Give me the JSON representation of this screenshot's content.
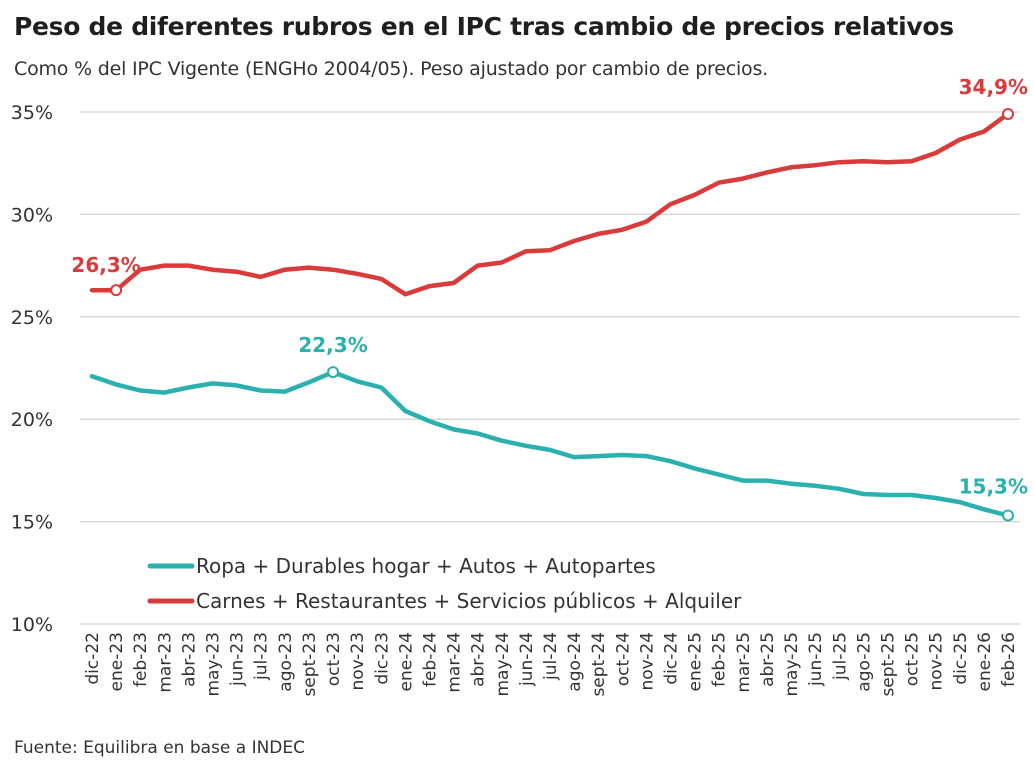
{
  "title": "Peso de diferentes rubros en el IPC tras cambio de precios relativos",
  "subtitle": "Como % del IPC Vigente (ENGHo 2004/05).  Peso ajustado por cambio de precios.",
  "source": "Fuente: Equilibra en base a INDEC",
  "chart_data": {
    "type": "line",
    "title": "Peso de diferentes rubros en el IPC tras cambio de precios relativos",
    "subtitle": "Como % del IPC Vigente (ENGHo 2004/05).  Peso ajustado por cambio de precios.",
    "xlabel": "",
    "ylabel": "",
    "ylim": [
      10,
      35
    ],
    "yticks": [
      10,
      15,
      20,
      25,
      30,
      35
    ],
    "ytick_labels": [
      "10%",
      "15%",
      "20%",
      "25%",
      "30%",
      "35%"
    ],
    "grid": true,
    "legend_position": "bottom-left",
    "categories": [
      "dic-22",
      "ene-23",
      "feb-23",
      "mar-23",
      "abr-23",
      "may-23",
      "jun-23",
      "jul-23",
      "ago-23",
      "sept-23",
      "oct-23",
      "nov-23",
      "dic-23",
      "ene-24",
      "feb-24",
      "mar-24",
      "abr-24",
      "may-24",
      "jun-24",
      "jul-24",
      "ago-24",
      "sept-24",
      "oct-24",
      "nov-24",
      "dic-24",
      "ene-25",
      "feb-25",
      "mar-25",
      "abr-25",
      "may-25",
      "jun-25",
      "jul-25",
      "ago-25",
      "sept-25",
      "oct-25",
      "nov-25",
      "dic-25",
      "ene-26",
      "feb-26"
    ],
    "series": [
      {
        "name": "Ropa + Durables hogar + Autos + Autopartes",
        "color": "#2ab0ae",
        "values": [
          22.1,
          21.7,
          21.4,
          21.3,
          21.55,
          21.75,
          21.65,
          21.4,
          21.35,
          21.8,
          22.3,
          21.85,
          21.55,
          20.4,
          19.9,
          19.5,
          19.3,
          18.95,
          18.7,
          18.5,
          18.15,
          18.2,
          18.25,
          18.2,
          17.95,
          17.6,
          17.3,
          17.0,
          17.0,
          16.85,
          16.75,
          16.6,
          16.35,
          16.3,
          16.3,
          16.15,
          15.95,
          15.6,
          15.3
        ]
      },
      {
        "name": "Carnes + Restaurantes + Servicios públicos + Alquiler",
        "color": "#d93b3b",
        "values": [
          26.3,
          26.3,
          27.3,
          27.5,
          27.5,
          27.3,
          27.2,
          26.95,
          27.3,
          27.4,
          27.3,
          27.1,
          26.85,
          26.1,
          26.5,
          26.65,
          27.5,
          27.65,
          28.2,
          28.25,
          28.7,
          29.05,
          29.25,
          29.65,
          30.5,
          30.95,
          31.55,
          31.75,
          32.05,
          32.3,
          32.4,
          32.55,
          32.6,
          32.55,
          32.6,
          33.0,
          33.65,
          34.05,
          34.9
        ]
      }
    ],
    "annotations": [
      {
        "series": 1,
        "index": 1,
        "text": "26,3%",
        "color": "#d93b3b"
      },
      {
        "series": 1,
        "index": 38,
        "text": "34,9%",
        "color": "#d93b3b"
      },
      {
        "series": 0,
        "index": 10,
        "text": "22,3%",
        "color": "#2ab0ae"
      },
      {
        "series": 0,
        "index": 38,
        "text": "15,3%",
        "color": "#2ab0ae"
      }
    ]
  }
}
